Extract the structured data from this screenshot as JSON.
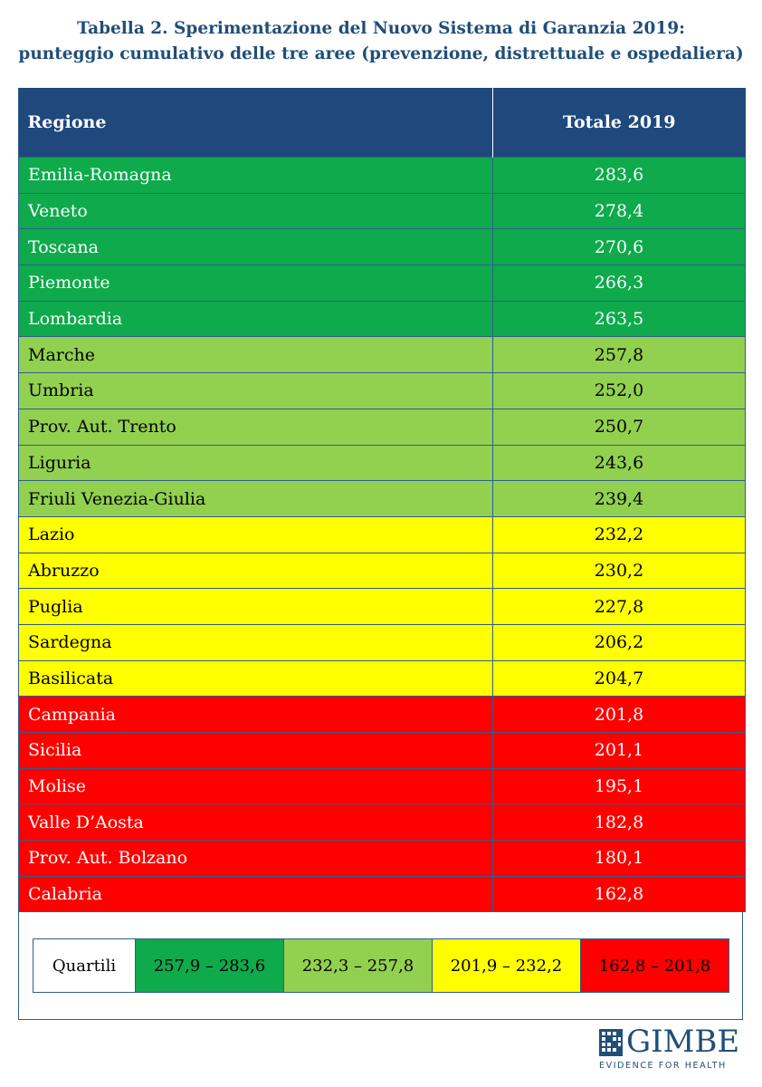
{
  "title": {
    "line1": "Tabella 2. Sperimentazione del Nuovo Sistema di Garanzia 2019:",
    "line2": "punteggio cumulativo delle tre aree (prevenzione, distrettuale e ospedaliera)"
  },
  "table": {
    "headers": {
      "region": "Regione",
      "total": "Totale 2019"
    },
    "rows": [
      {
        "region": "Emilia-Romagna",
        "total": "283,6",
        "quartile": 1
      },
      {
        "region": "Veneto",
        "total": "278,4",
        "quartile": 1
      },
      {
        "region": "Toscana",
        "total": "270,6",
        "quartile": 1
      },
      {
        "region": "Piemonte",
        "total": "266,3",
        "quartile": 1
      },
      {
        "region": "Lombardia",
        "total": "263,5",
        "quartile": 1
      },
      {
        "region": "Marche",
        "total": "257,8",
        "quartile": 2
      },
      {
        "region": "Umbria",
        "total": "252,0",
        "quartile": 2
      },
      {
        "region": "Prov. Aut. Trento",
        "total": "250,7",
        "quartile": 2
      },
      {
        "region": "Liguria",
        "total": "243,6",
        "quartile": 2
      },
      {
        "region": "Friuli Venezia-Giulia",
        "total": "239,4",
        "quartile": 2
      },
      {
        "region": "Lazio",
        "total": "232,2",
        "quartile": 3
      },
      {
        "region": "Abruzzo",
        "total": "230,2",
        "quartile": 3
      },
      {
        "region": "Puglia",
        "total": "227,8",
        "quartile": 3
      },
      {
        "region": "Sardegna",
        "total": "206,2",
        "quartile": 3
      },
      {
        "region": "Basilicata",
        "total": "204,7",
        "quartile": 3
      },
      {
        "region": "Campania",
        "total": "201,8",
        "quartile": 4
      },
      {
        "region": "Sicilia",
        "total": "201,1",
        "quartile": 4
      },
      {
        "region": "Molise",
        "total": "195,1",
        "quartile": 4
      },
      {
        "region": "Valle D’Aosta",
        "total": "182,8",
        "quartile": 4
      },
      {
        "region": "Prov. Aut. Bolzano",
        "total": "180,1",
        "quartile": 4
      },
      {
        "region": "Calabria",
        "total": "162,8",
        "quartile": 4
      }
    ]
  },
  "legend": {
    "label": "Quartili",
    "ranges": [
      "257,9 – 283,6",
      "232,3 – 257,8",
      "201,9 – 232,2",
      "162,8 – 201,8"
    ]
  },
  "colors": {
    "header_bg": "#1f497d",
    "quartile_1": "#0eaa4b",
    "quartile_2": "#92d050",
    "quartile_3": "#ffff00",
    "quartile_4": "#ff0000"
  },
  "logo": {
    "name": "GIMBE",
    "tagline": "EVIDENCE FOR HEALTH"
  }
}
